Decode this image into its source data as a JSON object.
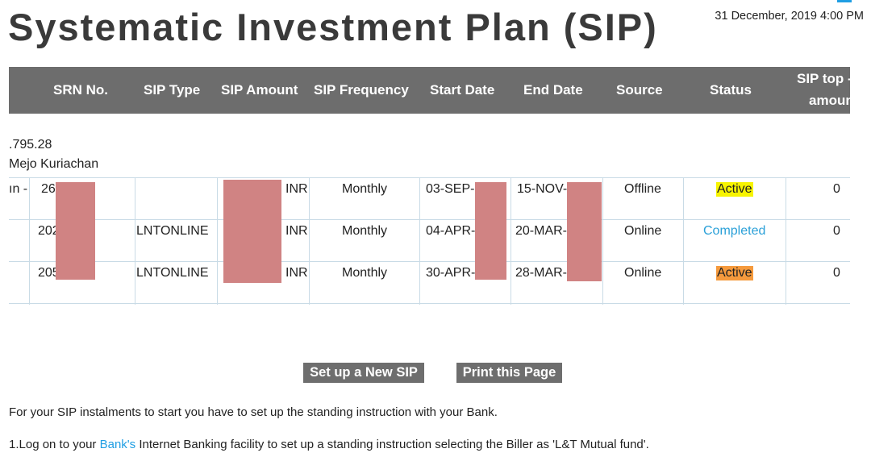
{
  "page": {
    "title": "Systematic Investment Plan (SIP)",
    "datetime": "31 December, 2019 4:00 PM"
  },
  "table": {
    "headers": {
      "srn": "SRN No.",
      "sip_type": "SIP Type",
      "sip_amount": "SIP Amount",
      "sip_frequency": "SIP Frequency",
      "start_date": "Start Date",
      "end_date": "End Date",
      "source": "Source",
      "status": "Status",
      "topup_line1": "SIP top -",
      "topup_line2": "amoun"
    },
    "rows": [
      {
        "lead": "ın -",
        "srn": "26",
        "sip_type": "",
        "currency": "INR",
        "frequency": "Monthly",
        "start": "03-SEP-",
        "end": "15-NOV-",
        "source": "Offline",
        "status": "Active",
        "topup": "0"
      },
      {
        "lead": "",
        "srn": "202",
        "sip_type": "LNTONLINE",
        "currency": "INR",
        "frequency": "Monthly",
        "start": "04-APR-",
        "end": "20-MAR-",
        "source": "Online",
        "status": "Completed",
        "topup": "0"
      },
      {
        "lead": "",
        "srn": "205",
        "sip_type": "LNTONLINE",
        "currency": "INR",
        "frequency": "Monthly",
        "start": "30-APR-",
        "end": "28-MAR-",
        "source": "Online",
        "status": "Active",
        "topup": "0"
      }
    ]
  },
  "summary": {
    "amount_fragment": ".795.28",
    "name_fragment": "Mejo Kuriachan"
  },
  "buttons": {
    "new_sip": "Set up a New SIP",
    "print": "Print this Page"
  },
  "instructions": {
    "line1": "For your SIP instalments to start you have to set up the standing instruction with your Bank.",
    "line2_prefix": "1.Log on to your ",
    "line2_link": "Bank's",
    "line2_suffix": " Internet Banking facility to set up a standing instruction selecting the Biller as 'L&T Mutual fund'."
  },
  "colors": {
    "header_bg": "#6d6d6d",
    "active_yellow": "#f7f400",
    "active_orange": "#f59a3d",
    "completed_blue": "#2aa0d8",
    "link_blue": "#1f9ee3",
    "redaction": "#d08383"
  }
}
